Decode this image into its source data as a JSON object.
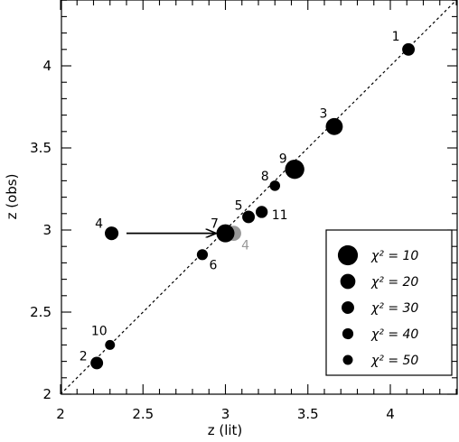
{
  "chart_data": {
    "type": "scatter",
    "xlabel": "z (lit)",
    "ylabel": "z (obs)",
    "xlim": [
      2.0,
      4.4
    ],
    "ylim": [
      2.0,
      4.4
    ],
    "x_ticks": [
      2,
      2.5,
      3,
      3.5,
      4
    ],
    "y_ticks": [
      2,
      2.5,
      3,
      3.5,
      4
    ],
    "x_tick_labels": [
      "2",
      "2.5",
      "3",
      "3.5",
      "4"
    ],
    "y_tick_labels": [
      "2",
      "2.5",
      "3",
      "3.5",
      "4"
    ],
    "reference_line": "y = x (dashed)",
    "grid": false,
    "legend_position": "bottom-right",
    "legend_entries": [
      {
        "label": "χ² = 10",
        "chi2": 10
      },
      {
        "label": "χ² = 20",
        "chi2": 20
      },
      {
        "label": "χ² = 30",
        "chi2": 30
      },
      {
        "label": "χ² = 40",
        "chi2": 40
      },
      {
        "label": "χ² = 50",
        "chi2": 50
      }
    ],
    "points": [
      {
        "label": "1",
        "x": 4.11,
        "y": 4.1,
        "chi2": 30,
        "color": "#000000"
      },
      {
        "label": "2",
        "x": 2.22,
        "y": 2.19,
        "chi2": 30,
        "color": "#000000"
      },
      {
        "label": "3",
        "x": 3.66,
        "y": 3.63,
        "chi2": 15,
        "color": "#000000"
      },
      {
        "label": "4",
        "x": 2.31,
        "y": 2.98,
        "chi2": 25,
        "color": "#000000"
      },
      {
        "label": "4",
        "x": 3.05,
        "y": 2.98,
        "chi2": 20,
        "color": "#999999"
      },
      {
        "label": "5",
        "x": 3.14,
        "y": 3.08,
        "chi2": 30,
        "color": "#000000"
      },
      {
        "label": "6",
        "x": 2.86,
        "y": 2.85,
        "chi2": 40,
        "color": "#000000"
      },
      {
        "label": "7",
        "x": 3.0,
        "y": 2.98,
        "chi2": 13,
        "color": "#000000"
      },
      {
        "label": "8",
        "x": 3.3,
        "y": 3.27,
        "chi2": 45,
        "color": "#000000"
      },
      {
        "label": "9",
        "x": 3.42,
        "y": 3.37,
        "chi2": 11,
        "color": "#000000"
      },
      {
        "label": "10",
        "x": 2.3,
        "y": 2.3,
        "chi2": 50,
        "color": "#000000"
      },
      {
        "label": "11",
        "x": 3.22,
        "y": 3.11,
        "chi2": 33,
        "color": "#000000"
      }
    ],
    "annotations": [
      {
        "type": "arrow",
        "from": [
          2.4,
          2.98
        ],
        "to": [
          2.95,
          2.98
        ]
      }
    ]
  }
}
